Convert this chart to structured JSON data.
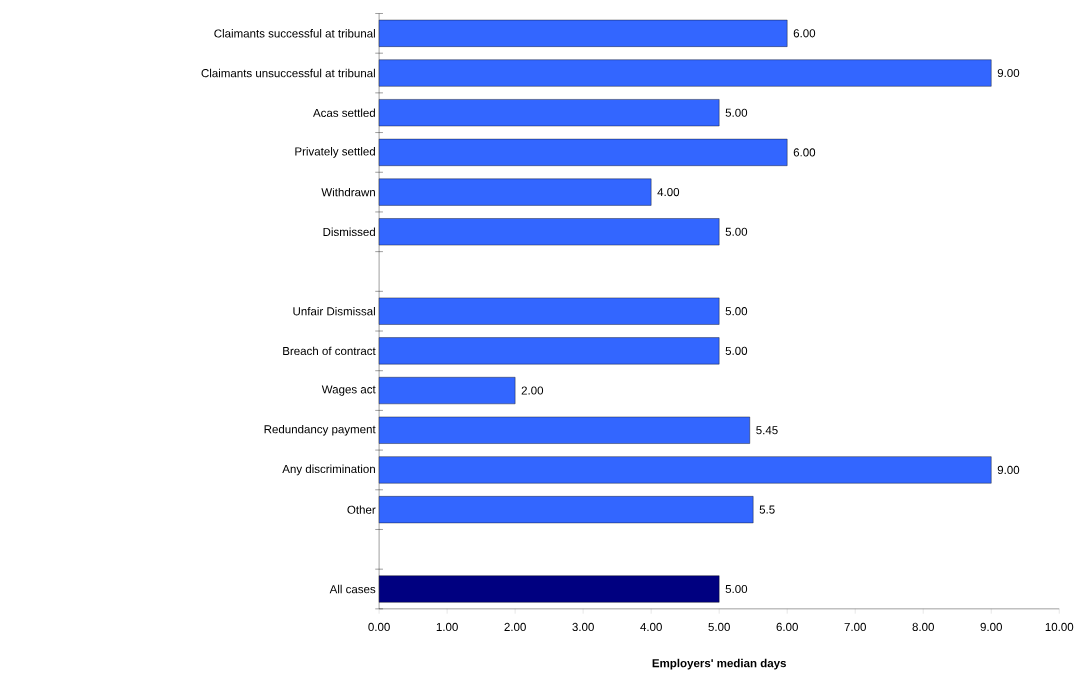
{
  "chart_data": {
    "type": "bar",
    "orientation": "horizontal",
    "xlabel": "Employers' median days",
    "categories": [
      "Claimants successful at tribunal",
      "Claimants unsuccessful at tribunal",
      "Acas settled",
      "Privately settled",
      "Withdrawn",
      "Dismissed",
      null,
      "Unfair Dismissal",
      "Breach of contract",
      "Wages act",
      "Redundancy payment",
      "Any discrimination",
      "Other",
      null,
      "All cases"
    ],
    "values": [
      6,
      9,
      5,
      6,
      4,
      5,
      null,
      5,
      5,
      2,
      5.45,
      9,
      5.5,
      null,
      5
    ],
    "value_labels": [
      "6.00",
      "9.00",
      "5.00",
      "6.00",
      "4.00",
      "5.00",
      null,
      "5.00",
      "5.00",
      "2.00",
      "5.45",
      "9.00",
      "5.5",
      null,
      "5.00"
    ],
    "colors": [
      "#3366ff",
      "#3366ff",
      "#3366ff",
      "#3366ff",
      "#3366ff",
      "#3366ff",
      null,
      "#3366ff",
      "#3366ff",
      "#3366ff",
      "#3366ff",
      "#3366ff",
      "#3366ff",
      null,
      "#000080"
    ],
    "xlim": [
      0,
      10
    ],
    "xticks": [
      {
        "value": 0,
        "label": "0.00"
      },
      {
        "value": 1,
        "label": "1.00"
      },
      {
        "value": 2,
        "label": "2.00"
      },
      {
        "value": 3,
        "label": "3.00"
      },
      {
        "value": 4,
        "label": "4.00"
      },
      {
        "value": 5,
        "label": "5.00"
      },
      {
        "value": 6,
        "label": "6.00"
      },
      {
        "value": 7,
        "label": "7.00"
      },
      {
        "value": 8,
        "label": "8.00"
      },
      {
        "value": 9,
        "label": "9.00"
      },
      {
        "value": 10,
        "label": "10.00"
      }
    ]
  }
}
